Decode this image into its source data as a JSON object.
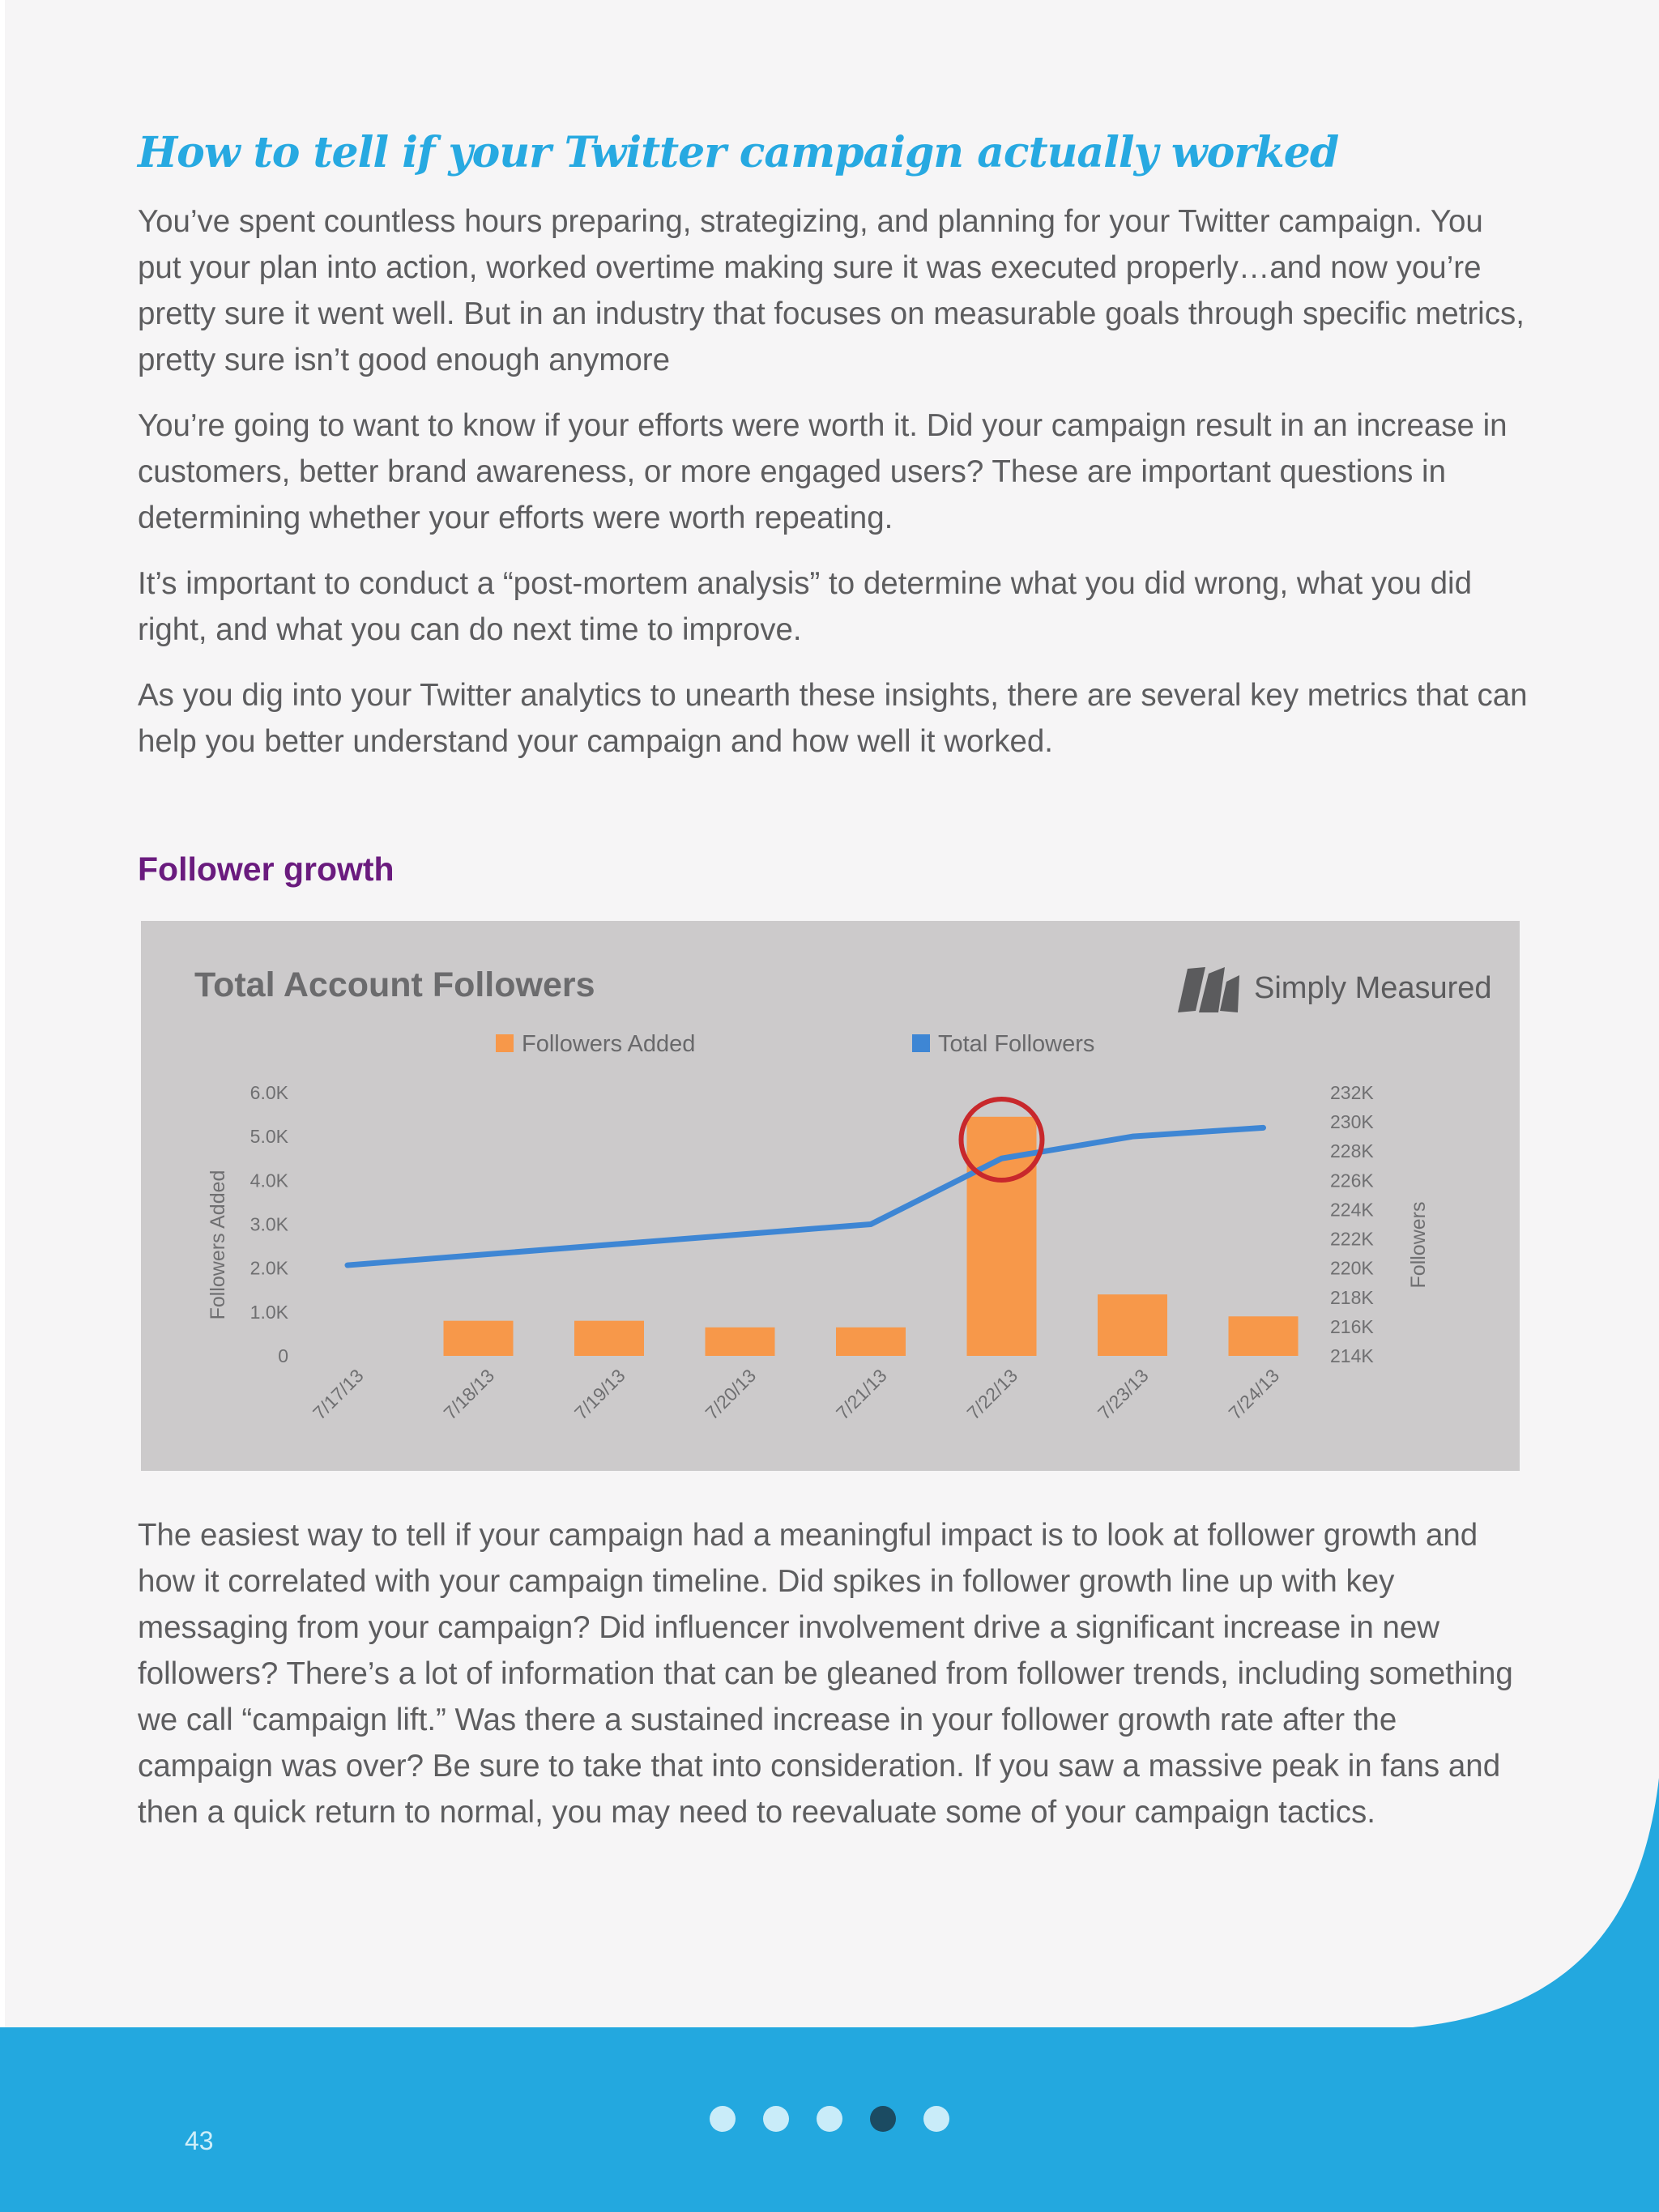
{
  "heading": "How to tell if your Twitter campaign actually worked",
  "paragraphs": [
    "You’ve spent countless hours preparing, strategizing, and planning for your Twitter campaign. You put your plan into action, worked overtime making sure it was executed properly…and now you’re pretty sure it went well. But in an industry that focuses on measurable goals through specific metrics, pretty sure isn’t good enough anymore",
    "You’re going to want to know if your efforts were worth it. Did your campaign result in an increase in customers, better brand awareness, or more engaged users? These are important questions in determining whether your efforts were worth repeating.",
    "It’s important to conduct a “post-mortem analysis” to determine what you did wrong, what you did right, and what you can do next time to improve.",
    "As you dig into your Twitter analytics to unearth these insights, there are several key metrics that can help you better understand your campaign and how well it worked."
  ],
  "subheading": "Follower growth",
  "closing_paragraph": "The easiest way to tell if your campaign had a meaningful impact is to look at follower growth and how it correlated with your campaign timeline. Did spikes in follower growth line up with key messaging from your campaign? Did influencer involvement drive a significant increase in new followers? There’s a lot of information that can be gleaned from follower trends, including something we call “campaign lift.” Was there a sustained increase in your follower growth rate after the campaign was over? Be sure to take that into consideration. If you saw a massive peak in fans and then a quick return to normal, you may need to reevaluate some of your campaign tactics.",
  "brand": {
    "name": "Simply Measured"
  },
  "chart_data": {
    "type": "bar",
    "title": "Total Account Followers",
    "categories": [
      "7/17/13",
      "7/18/13",
      "7/19/13",
      "7/20/13",
      "7/21/13",
      "7/22/13",
      "7/23/13",
      "7/24/13"
    ],
    "series": [
      {
        "name": "Followers Added",
        "type": "bar",
        "axis": "left",
        "color": "#f7984a",
        "values": [
          0,
          800,
          800,
          650,
          650,
          5450,
          1400,
          900
        ]
      },
      {
        "name": "Total Followers",
        "type": "line",
        "axis": "right",
        "color": "#3e86d4",
        "values": [
          220200,
          220900,
          221600,
          222300,
          223000,
          227500,
          229000,
          229600
        ]
      }
    ],
    "ylabel_left": "Followers Added",
    "ylabel_right": "Followers",
    "yticks_left": [
      "6.0K",
      "5.0K",
      "4.0K",
      "3.0K",
      "2.0K",
      "1.0K",
      "0"
    ],
    "yticks_right": [
      "232K",
      "230K",
      "228K",
      "226K",
      "224K",
      "222K",
      "220K",
      "218K",
      "216K",
      "214K"
    ],
    "ylim_left": [
      0,
      6000
    ],
    "ylim_right": [
      214000,
      232000
    ],
    "highlight": {
      "category": "7/22/13",
      "color": "#c8282c"
    },
    "legend_position": "top",
    "grid": false
  },
  "footer": {
    "page_number": "43",
    "pagination_dots": 5,
    "active_dot_index": 3,
    "band_color": "#23a8df"
  }
}
